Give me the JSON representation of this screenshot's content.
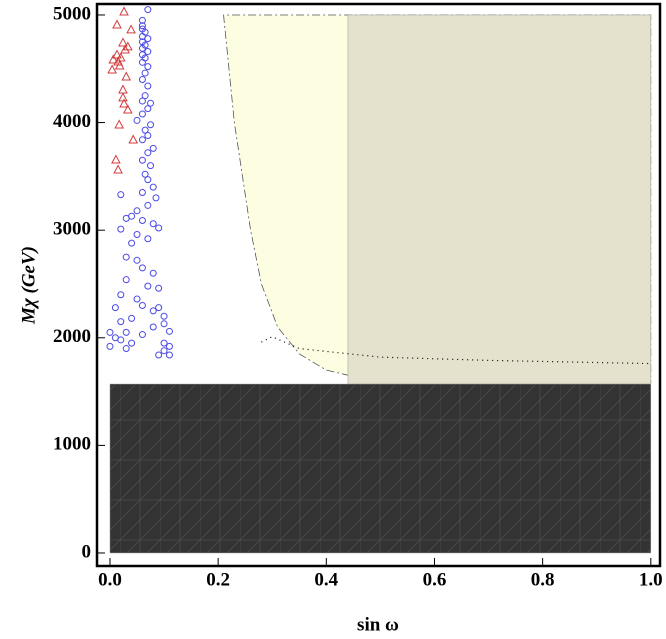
{
  "chart_data": {
    "type": "scatter",
    "xlabel": "sin ω",
    "ylabel": "Mχ (GeV)",
    "xlim": [
      -0.024,
      1.017
    ],
    "ylim": [
      -121,
      5102
    ],
    "xticks": [
      {
        "value": 0,
        "label": "0.0"
      },
      {
        "value": 0.2,
        "label": "0.2"
      },
      {
        "value": 0.4,
        "label": "0.4"
      },
      {
        "value": 0.6,
        "label": "0.6"
      },
      {
        "value": 0.8,
        "label": "0.8"
      },
      {
        "value": 1,
        "label": "1.0"
      }
    ],
    "yticks": [
      0,
      1000,
      2000,
      3000,
      4000,
      5000
    ],
    "regions": [
      {
        "color": "#fdfde2",
        "x": [
          0.21,
          0.22,
          0.23,
          0.245,
          0.26,
          0.28,
          0.31,
          0.35,
          0.4,
          0.45,
          0.55,
          0.7,
          1.0,
          1.0
        ],
        "y": [
          5000,
          4500,
          4000,
          3500,
          3000,
          2500,
          2100,
          1850,
          1700,
          1640,
          1600,
          1585,
          1580,
          5000
        ]
      },
      {
        "color": "#e4e2cc",
        "x": [
          0.44,
          1.0,
          1.0,
          0.44
        ],
        "y": [
          1570,
          1570,
          5000,
          5000
        ]
      },
      {
        "color": "#333333",
        "x": [
          0,
          1.0,
          1.0,
          0
        ],
        "y": [
          0,
          0,
          1570,
          1570
        ]
      }
    ],
    "curves": [
      {
        "color": "#000000",
        "x": [
          0.28,
          0.3,
          0.35,
          0.5,
          0.7,
          1.0
        ],
        "y": [
          1960,
          2010,
          1900,
          1820,
          1790,
          1760
        ]
      }
    ],
    "series": [
      {
        "name": "triangle",
        "color": "#d23c3c",
        "marker": "triangle",
        "x": [
          0.026,
          0.013,
          0.039,
          0.024,
          0.033,
          0.028,
          0.013,
          0.02,
          0.006,
          0.015,
          0.018,
          0.004,
          0.03,
          0.024,
          0.024,
          0.026,
          0.033,
          0.017,
          0.043,
          0.011,
          0.015
        ],
        "values": [
          5028,
          4907,
          4861,
          4740,
          4703,
          4675,
          4628,
          4600,
          4582,
          4563,
          4526,
          4489,
          4424,
          4303,
          4229,
          4173,
          4117,
          3978,
          3838,
          3652,
          3559
        ]
      },
      {
        "name": "circle",
        "color": "#4a4ae6",
        "marker": "circle",
        "x": [
          0.07,
          0.06,
          0.06,
          0.06,
          0.065,
          0.06,
          0.07,
          0.06,
          0.065,
          0.06,
          0.07,
          0.06,
          0.065,
          0.06,
          0.07,
          0.065,
          0.06,
          0.07,
          0.065,
          0.06,
          0.075,
          0.07,
          0.06,
          0.05,
          0.075,
          0.065,
          0.07,
          0.06,
          0.08,
          0.07,
          0.06,
          0.075,
          0.065,
          0.07,
          0.08,
          0.06,
          0.02,
          0.085,
          0.07,
          0.05,
          0.04,
          0.03,
          0.06,
          0.08,
          0.09,
          0.02,
          0.05,
          0.07,
          0.04,
          0.03,
          0.05,
          0.06,
          0.08,
          0.03,
          0.07,
          0.09,
          0.02,
          0.05,
          0.06,
          0.09,
          0.01,
          0.08,
          0.1,
          0.04,
          0.02,
          0.1,
          0.08,
          0.11,
          0.0,
          0.03,
          0.06,
          0.01,
          0.02,
          0.04,
          0.1,
          0.11,
          0.0,
          0.03,
          0.1,
          0.11,
          0.09
        ],
        "values": [
          5050,
          4950,
          4900,
          4870,
          4840,
          4800,
          4780,
          4750,
          4720,
          4690,
          4660,
          4630,
          4600,
          4560,
          4520,
          4460,
          4400,
          4340,
          4250,
          4200,
          4180,
          4130,
          4080,
          4020,
          3980,
          3930,
          3880,
          3840,
          3760,
          3720,
          3650,
          3600,
          3520,
          3470,
          3400,
          3350,
          3330,
          3300,
          3230,
          3180,
          3130,
          3110,
          3090,
          3060,
          3020,
          3010,
          2960,
          2920,
          2880,
          2750,
          2720,
          2650,
          2600,
          2540,
          2480,
          2460,
          2400,
          2360,
          2300,
          2280,
          2280,
          2250,
          2200,
          2180,
          2150,
          2130,
          2100,
          2060,
          2050,
          2050,
          2030,
          2000,
          1980,
          1950,
          1950,
          1920,
          1920,
          1900,
          1880,
          1840,
          1840
        ]
      }
    ]
  }
}
